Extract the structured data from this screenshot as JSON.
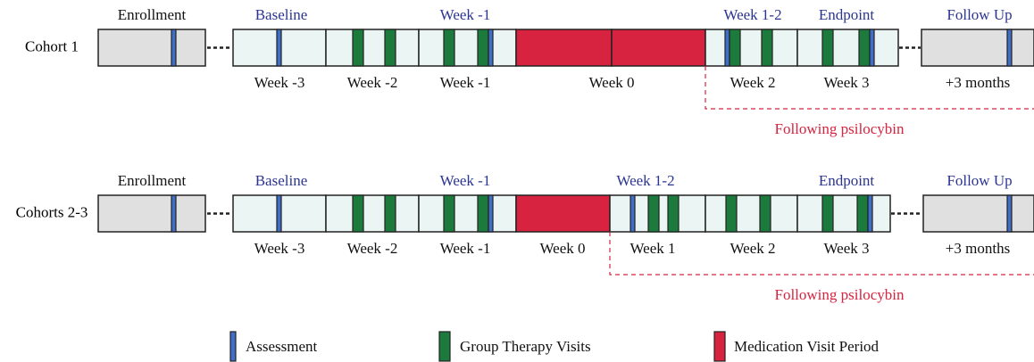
{
  "rows": [
    {
      "label": "Cohort 1",
      "top_labels": [
        "Enrollment",
        "Baseline",
        "Week -1",
        "Week 1-2",
        "Endpoint",
        "Follow Up"
      ],
      "bottom_labels": [
        "Week -3",
        "Week -2",
        "Week -1",
        "Week 0",
        "Week 2",
        "Week 3",
        "+3 months"
      ],
      "note": "Following psilocybin"
    },
    {
      "label": "Cohorts 2-3",
      "top_labels": [
        "Enrollment",
        "Baseline",
        "Week -1",
        "Week 1-2",
        "Endpoint",
        "Follow Up"
      ],
      "bottom_labels": [
        "Week -3",
        "Week -2",
        "Week -1",
        "Week 0",
        "Week 1",
        "Week 2",
        "Week 3",
        "+3 months"
      ],
      "note": "Following psilocybin"
    }
  ],
  "legend": [
    "Assessment",
    "Group Therapy Visits",
    "Medication Visit Period"
  ]
}
